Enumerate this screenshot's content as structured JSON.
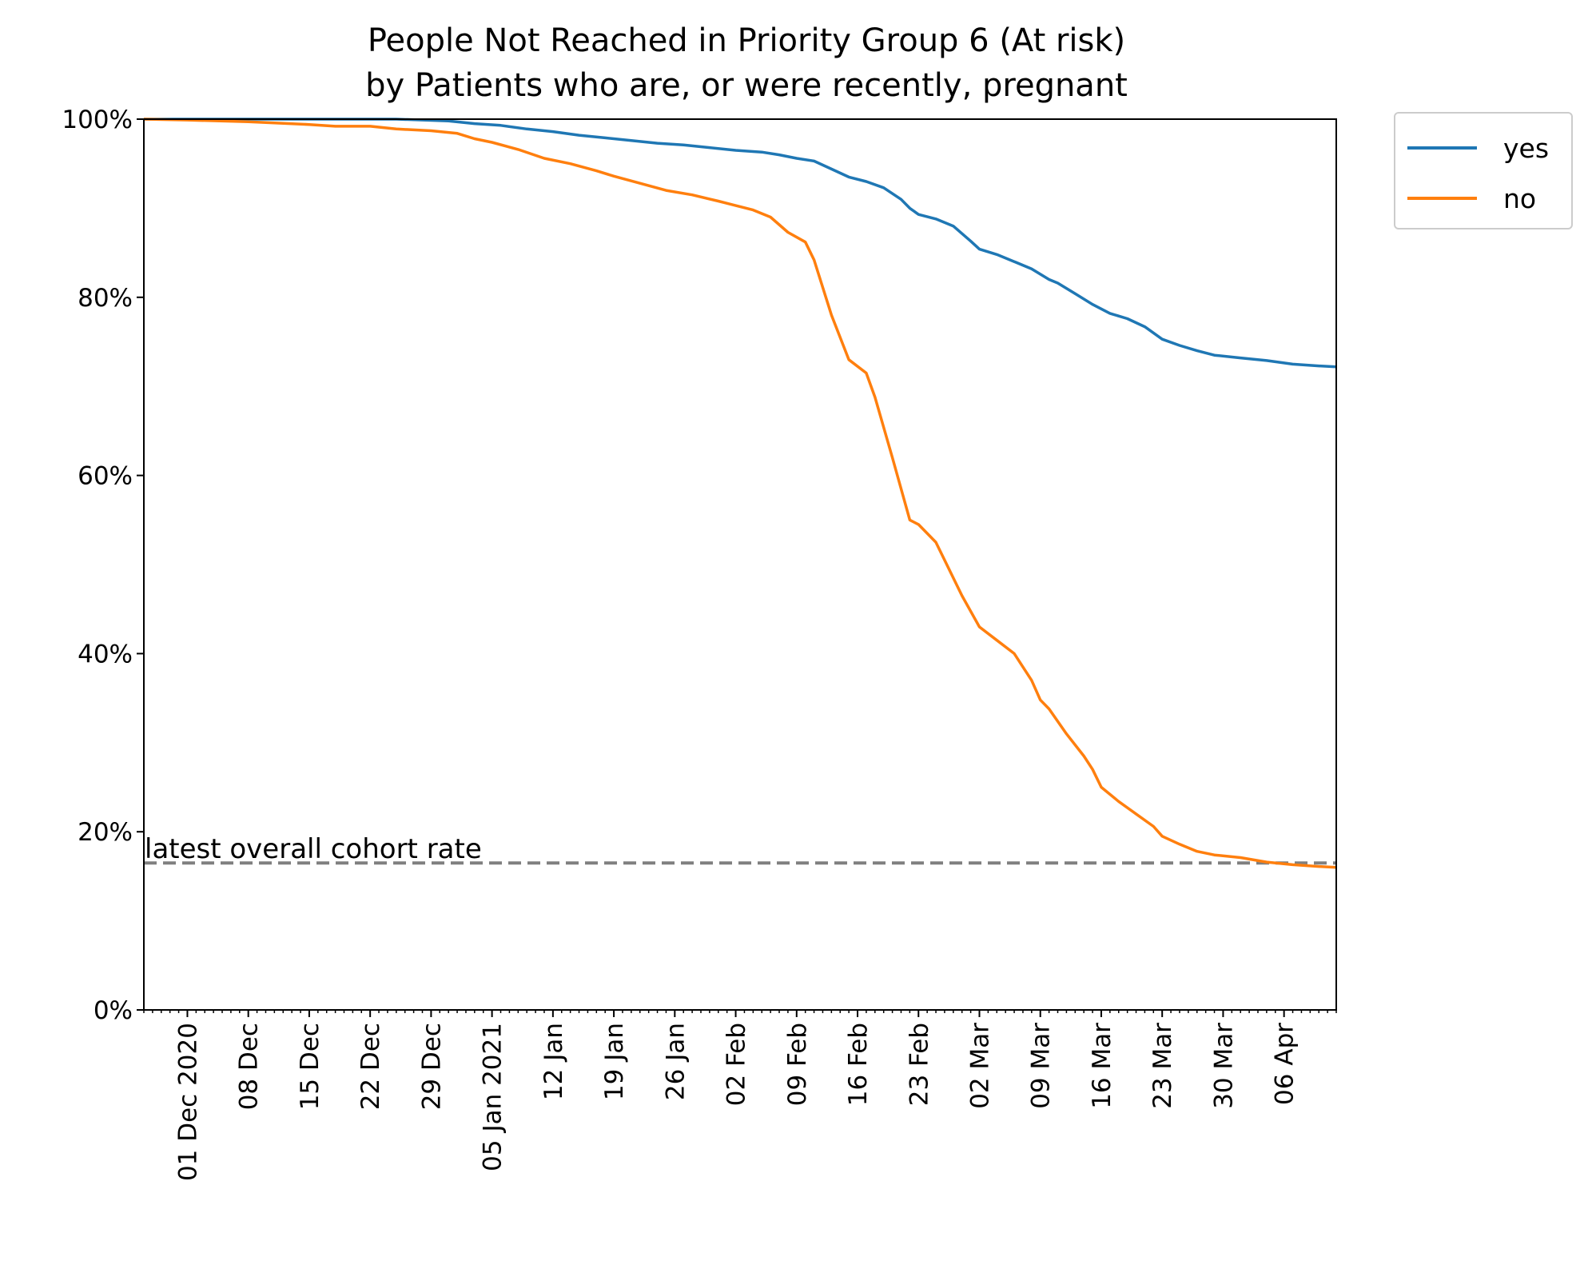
{
  "chart_data": {
    "type": "line",
    "title": "People Not Reached in Priority Group 6 (At risk)",
    "subtitle": "by Patients who are, or were recently, pregnant",
    "xlabel": "",
    "ylabel": "",
    "x_range": [
      "2020-11-26",
      "2021-04-12"
    ],
    "ylim": [
      0,
      100
    ],
    "y_ticks": [
      0,
      20,
      40,
      60,
      80,
      100
    ],
    "y_tick_format": "{v}%",
    "x_ticks": [
      {
        "date": "2020-12-01",
        "label": "01 Dec 2020"
      },
      {
        "date": "2020-12-08",
        "label": "08 Dec"
      },
      {
        "date": "2020-12-15",
        "label": "15 Dec"
      },
      {
        "date": "2020-12-22",
        "label": "22 Dec"
      },
      {
        "date": "2020-12-29",
        "label": "29 Dec"
      },
      {
        "date": "2021-01-05",
        "label": "05 Jan 2021"
      },
      {
        "date": "2021-01-12",
        "label": "12 Jan"
      },
      {
        "date": "2021-01-19",
        "label": "19 Jan"
      },
      {
        "date": "2021-01-26",
        "label": "26 Jan"
      },
      {
        "date": "2021-02-02",
        "label": "02 Feb"
      },
      {
        "date": "2021-02-09",
        "label": "09 Feb"
      },
      {
        "date": "2021-02-16",
        "label": "16 Feb"
      },
      {
        "date": "2021-02-23",
        "label": "23 Feb"
      },
      {
        "date": "2021-03-02",
        "label": "02 Mar"
      },
      {
        "date": "2021-03-09",
        "label": "09 Mar"
      },
      {
        "date": "2021-03-16",
        "label": "16 Mar"
      },
      {
        "date": "2021-03-23",
        "label": "23 Mar"
      },
      {
        "date": "2021-03-30",
        "label": "30 Mar"
      },
      {
        "date": "2021-04-06",
        "label": "06 Apr"
      }
    ],
    "grid": false,
    "legend": {
      "placement": "outside-top-right"
    },
    "reference_line": {
      "value": 16.5,
      "label": "latest overall cohort rate",
      "color": "#808080",
      "style": "dashed"
    },
    "series": [
      {
        "name": "yes",
        "color": "#1f77b4",
        "points": [
          [
            "2020-11-26",
            100
          ],
          [
            "2020-12-05",
            100
          ],
          [
            "2020-12-15",
            100
          ],
          [
            "2020-12-25",
            100
          ],
          [
            "2020-12-31",
            99.8
          ],
          [
            "2021-01-03",
            99.5
          ],
          [
            "2021-01-06",
            99.3
          ],
          [
            "2021-01-09",
            98.9
          ],
          [
            "2021-01-12",
            98.6
          ],
          [
            "2021-01-15",
            98.2
          ],
          [
            "2021-01-18",
            97.9
          ],
          [
            "2021-01-21",
            97.6
          ],
          [
            "2021-01-24",
            97.3
          ],
          [
            "2021-01-27",
            97.1
          ],
          [
            "2021-01-30",
            96.8
          ],
          [
            "2021-02-02",
            96.5
          ],
          [
            "2021-02-05",
            96.3
          ],
          [
            "2021-02-07",
            96.0
          ],
          [
            "2021-02-09",
            95.6
          ],
          [
            "2021-02-11",
            95.3
          ],
          [
            "2021-02-13",
            94.4
          ],
          [
            "2021-02-15",
            93.5
          ],
          [
            "2021-02-17",
            93.0
          ],
          [
            "2021-02-19",
            92.3
          ],
          [
            "2021-02-21",
            91.0
          ],
          [
            "2021-02-22",
            90.0
          ],
          [
            "2021-02-23",
            89.3
          ],
          [
            "2021-02-25",
            88.8
          ],
          [
            "2021-02-27",
            88.0
          ],
          [
            "2021-03-01",
            86.3
          ],
          [
            "2021-03-02",
            85.4
          ],
          [
            "2021-03-04",
            84.8
          ],
          [
            "2021-03-06",
            84.0
          ],
          [
            "2021-03-08",
            83.2
          ],
          [
            "2021-03-10",
            82.0
          ],
          [
            "2021-03-11",
            81.6
          ],
          [
            "2021-03-13",
            80.4
          ],
          [
            "2021-03-15",
            79.2
          ],
          [
            "2021-03-17",
            78.2
          ],
          [
            "2021-03-19",
            77.6
          ],
          [
            "2021-03-21",
            76.7
          ],
          [
            "2021-03-23",
            75.3
          ],
          [
            "2021-03-25",
            74.6
          ],
          [
            "2021-03-27",
            74.0
          ],
          [
            "2021-03-29",
            73.5
          ],
          [
            "2021-04-01",
            73.2
          ],
          [
            "2021-04-04",
            72.9
          ],
          [
            "2021-04-07",
            72.5
          ],
          [
            "2021-04-10",
            72.3
          ],
          [
            "2021-04-12",
            72.2
          ]
        ]
      },
      {
        "name": "no",
        "color": "#ff7f0e",
        "points": [
          [
            "2020-11-26",
            100
          ],
          [
            "2020-12-01",
            99.9
          ],
          [
            "2020-12-08",
            99.7
          ],
          [
            "2020-12-15",
            99.4
          ],
          [
            "2020-12-18",
            99.2
          ],
          [
            "2020-12-22",
            99.2
          ],
          [
            "2020-12-25",
            98.9
          ],
          [
            "2020-12-29",
            98.7
          ],
          [
            "2021-01-01",
            98.4
          ],
          [
            "2021-01-03",
            97.8
          ],
          [
            "2021-01-05",
            97.4
          ],
          [
            "2021-01-08",
            96.6
          ],
          [
            "2021-01-11",
            95.6
          ],
          [
            "2021-01-14",
            95.0
          ],
          [
            "2021-01-17",
            94.2
          ],
          [
            "2021-01-19",
            93.6
          ],
          [
            "2021-01-22",
            92.8
          ],
          [
            "2021-01-25",
            92.0
          ],
          [
            "2021-01-28",
            91.5
          ],
          [
            "2021-01-31",
            90.8
          ],
          [
            "2021-02-02",
            90.3
          ],
          [
            "2021-02-04",
            89.8
          ],
          [
            "2021-02-06",
            89.0
          ],
          [
            "2021-02-08",
            87.3
          ],
          [
            "2021-02-10",
            86.2
          ],
          [
            "2021-02-11",
            84.2
          ],
          [
            "2021-02-13",
            78.0
          ],
          [
            "2021-02-15",
            73.0
          ],
          [
            "2021-02-17",
            71.5
          ],
          [
            "2021-02-18",
            68.8
          ],
          [
            "2021-02-20",
            62.0
          ],
          [
            "2021-02-22",
            55.0
          ],
          [
            "2021-02-23",
            54.5
          ],
          [
            "2021-02-25",
            52.5
          ],
          [
            "2021-02-26",
            50.5
          ],
          [
            "2021-02-28",
            46.5
          ],
          [
            "2021-03-02",
            43.0
          ],
          [
            "2021-03-04",
            41.5
          ],
          [
            "2021-03-06",
            40.0
          ],
          [
            "2021-03-07",
            38.5
          ],
          [
            "2021-03-08",
            37.0
          ],
          [
            "2021-03-09",
            34.8
          ],
          [
            "2021-03-10",
            33.8
          ],
          [
            "2021-03-12",
            31.0
          ],
          [
            "2021-03-14",
            28.5
          ],
          [
            "2021-03-15",
            27.0
          ],
          [
            "2021-03-16",
            25.0
          ],
          [
            "2021-03-18",
            23.4
          ],
          [
            "2021-03-20",
            22.0
          ],
          [
            "2021-03-22",
            20.6
          ],
          [
            "2021-03-23",
            19.5
          ],
          [
            "2021-03-25",
            18.6
          ],
          [
            "2021-03-27",
            17.8
          ],
          [
            "2021-03-29",
            17.4
          ],
          [
            "2021-04-01",
            17.1
          ],
          [
            "2021-04-04",
            16.6
          ],
          [
            "2021-04-07",
            16.3
          ],
          [
            "2021-04-10",
            16.1
          ],
          [
            "2021-04-12",
            16.0
          ]
        ]
      }
    ]
  }
}
